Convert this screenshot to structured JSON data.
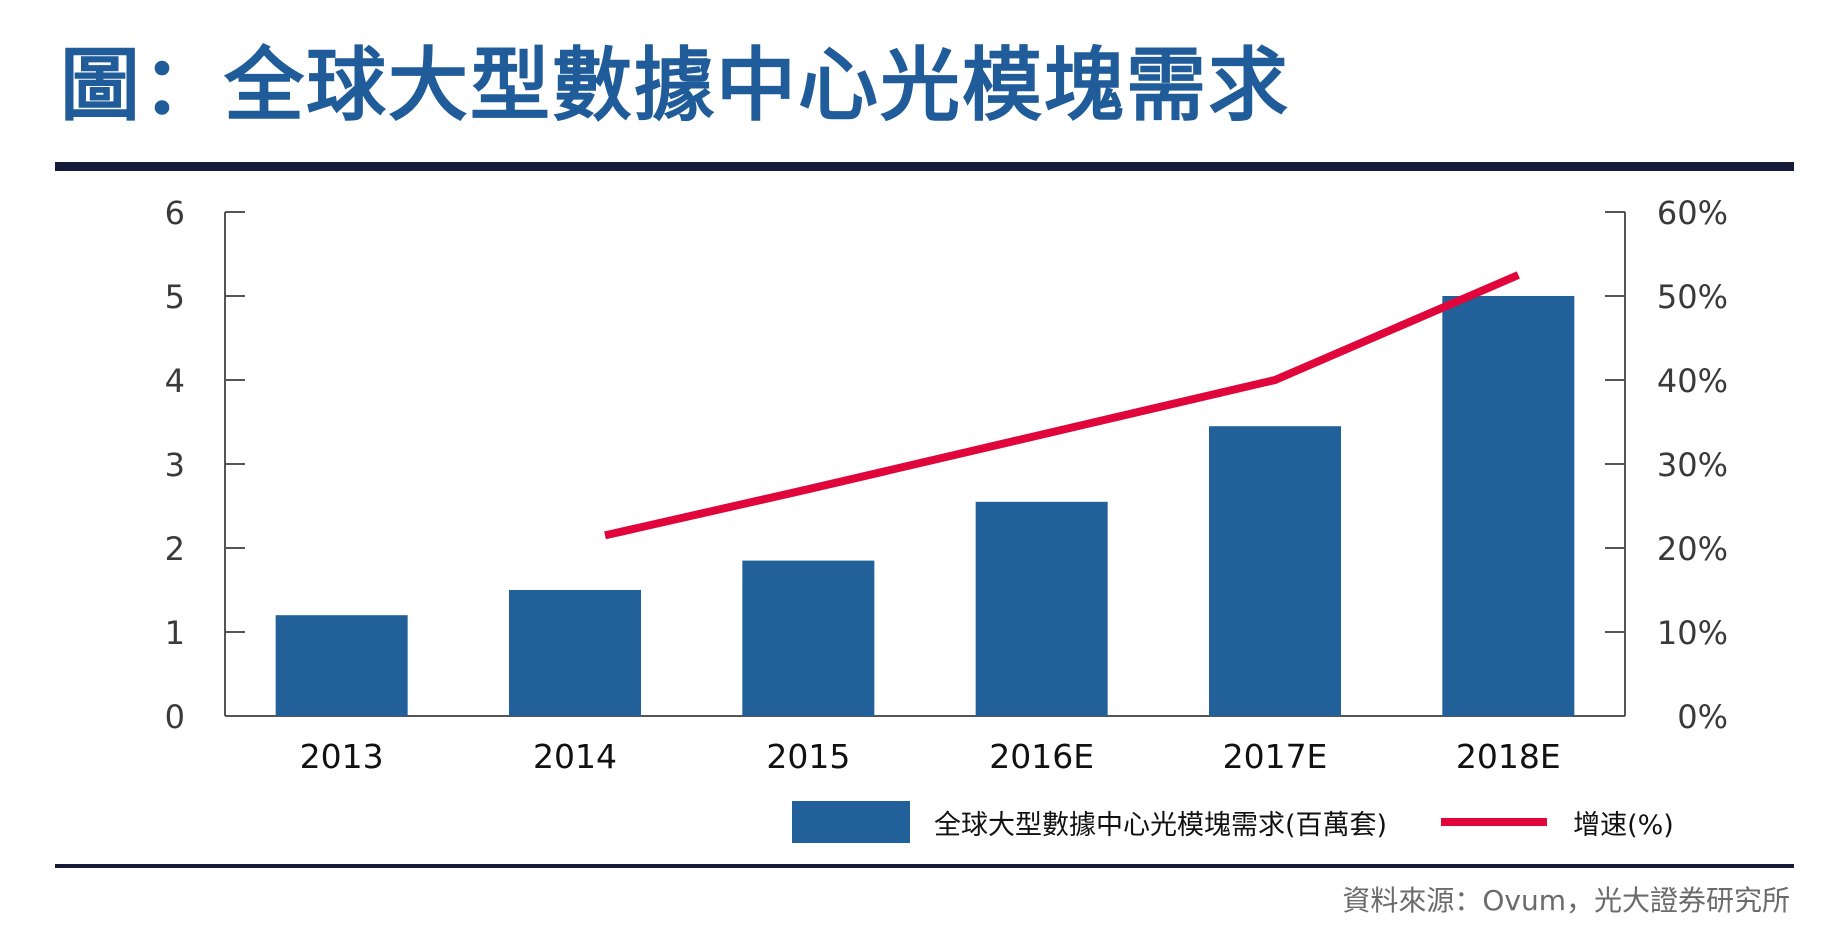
{
  "title": "圖：全球大型數據中心光模塊需求",
  "source": "資料來源：Ovum，光大證券研究所",
  "colors": {
    "title": "#1f5c99",
    "bar": "#22609a",
    "line": "#e0053b",
    "rule": "#141c3a"
  },
  "legend": {
    "bar_label": "全球大型數據中心光模塊需求(百萬套)",
    "line_label": "增速(%)"
  },
  "chart_data": {
    "type": "bar",
    "categories": [
      "2013",
      "2014",
      "2015",
      "2016E",
      "2017E",
      "2018E"
    ],
    "series": [
      {
        "name": "全球大型數據中心光模塊需求(百萬套)",
        "type": "bar",
        "axis": "left",
        "values": [
          1.2,
          1.5,
          1.85,
          2.55,
          3.45,
          5.0
        ]
      },
      {
        "name": "增速(%)",
        "type": "line",
        "axis": "right",
        "values": [
          null,
          21.5,
          27,
          33.5,
          40,
          52.5
        ]
      }
    ],
    "ylim_left": [
      0,
      6
    ],
    "yticks_left": [
      "0",
      "1",
      "2",
      "3",
      "4",
      "5",
      "6"
    ],
    "ylim_right": [
      0,
      60
    ],
    "yticks_right": [
      "0%",
      "10%",
      "20%",
      "30%",
      "40%",
      "50%",
      "60%"
    ],
    "grid": false,
    "legend_position": "bottom"
  }
}
